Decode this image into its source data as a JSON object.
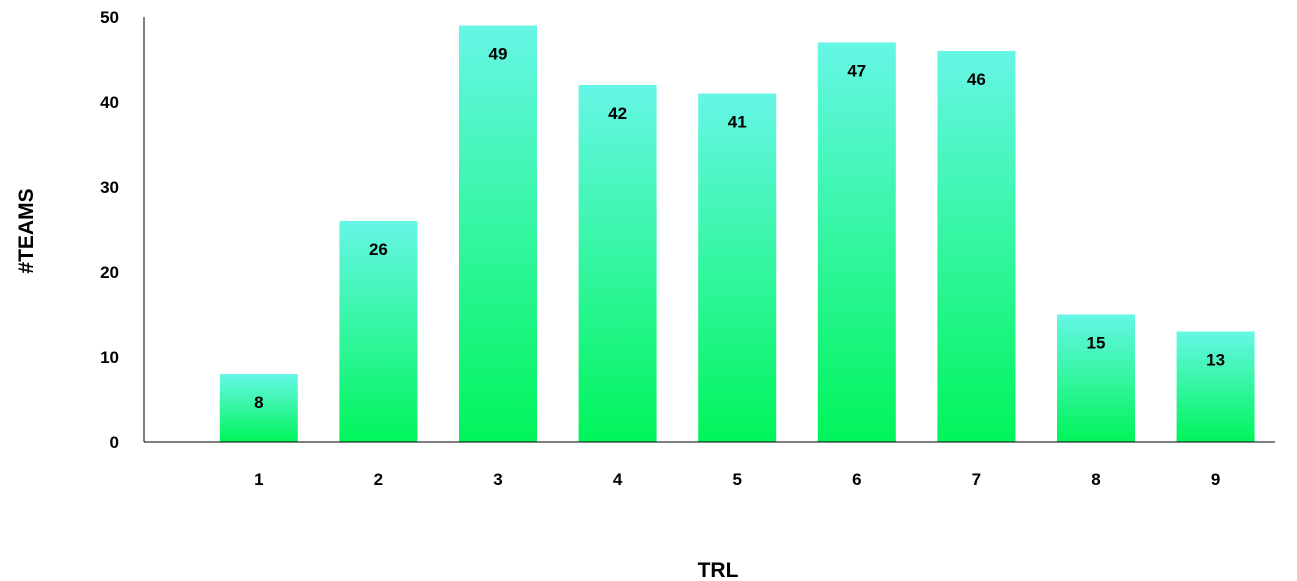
{
  "chart_data": {
    "type": "bar",
    "categories": [
      "1",
      "2",
      "3",
      "4",
      "5",
      "6",
      "7",
      "8",
      "9"
    ],
    "values": [
      8,
      26,
      49,
      42,
      41,
      47,
      46,
      15,
      13
    ],
    "xlabel": "TRL",
    "ylabel": "#TEAMS",
    "ylim": [
      0,
      50
    ],
    "yticks": [
      0,
      10,
      20,
      30,
      40,
      50
    ],
    "grid": false,
    "data_labels": true,
    "colors": {
      "bar_top": "#66f6e6",
      "bar_bottom": "#00f55a",
      "axis": "#000000"
    }
  }
}
